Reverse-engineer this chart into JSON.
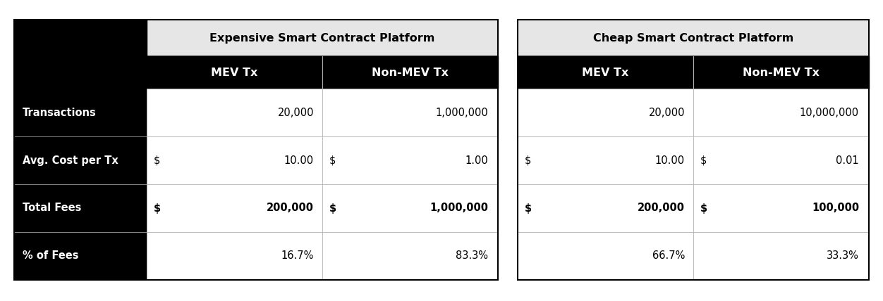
{
  "left_table_title": "Expensive Smart Contract Platform",
  "right_table_title": "Cheap Smart Contract Platform",
  "col_headers": [
    "MEV Tx",
    "Non-MEV Tx"
  ],
  "row_headers": [
    "Transactions",
    "Avg. Cost per Tx",
    "Total Fees",
    "% of Fees"
  ],
  "left_data": [
    [
      "",
      "20,000",
      "",
      "1,000,000"
    ],
    [
      "$",
      "10.00",
      "$",
      "1.00"
    ],
    [
      "$",
      "200,000",
      "$",
      "1,000,000"
    ],
    [
      "",
      "16.7%",
      "",
      "83.3%"
    ]
  ],
  "right_data": [
    [
      "",
      "20,000",
      "",
      "10,000,000"
    ],
    [
      "$",
      "10.00",
      "$",
      "0.01"
    ],
    [
      "$",
      "200,000",
      "$",
      "100,000"
    ],
    [
      "",
      "66.7%",
      "",
      "33.3%"
    ]
  ],
  "bold_rows": [
    2
  ],
  "bg_white": "#ffffff",
  "bg_black": "#000000",
  "bg_light_gray": "#e6e6e6",
  "text_white": "#ffffff",
  "text_black": "#000000",
  "outer_bg": "#ffffff",
  "border_color": "#000000",
  "inner_line_color": "#bbbbbb",
  "font_family": "Arial Black",
  "font_size_title": 11.5,
  "font_size_header": 11.5,
  "font_size_row_label": 10.5,
  "font_size_data": 10.5
}
